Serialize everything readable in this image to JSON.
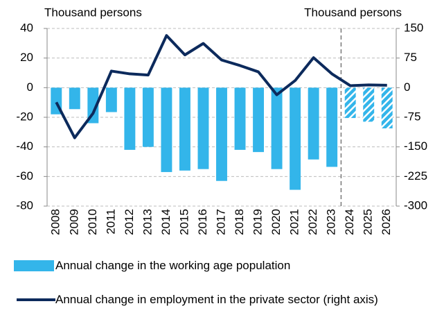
{
  "chart_data": {
    "type": "bar_line",
    "y_label": "Thousand persons",
    "y2_label": "Thousand persons",
    "categories": [
      "2008",
      "2009",
      "2010",
      "2011",
      "2012",
      "2013",
      "2014",
      "2015",
      "2016",
      "2017",
      "2018",
      "2019",
      "2020",
      "2021",
      "2022",
      "2023",
      "2024",
      "2025",
      "2026"
    ],
    "series": [
      {
        "name": "Annual change in the working age population",
        "type": "bar",
        "color": "#33b5ea",
        "values": [
          -18,
          -14.5,
          -24,
          -16.5,
          -42,
          -40,
          -57,
          -56,
          -55,
          -63,
          -42,
          -43.5,
          -55,
          -69,
          -48.5,
          -53.5,
          -20.5,
          -23,
          -27.5
        ],
        "hatched": [
          false,
          false,
          false,
          false,
          false,
          false,
          false,
          false,
          false,
          false,
          false,
          false,
          false,
          false,
          false,
          false,
          true,
          true,
          true
        ]
      },
      {
        "name": "Annual change in employment in the private sector (right axis)",
        "type": "line",
        "color": "#0c2a5c",
        "axis": "y2",
        "values": [
          -37,
          -127,
          -65,
          42,
          35,
          32,
          132,
          83,
          112,
          70,
          56,
          40,
          -18,
          18,
          76,
          35,
          5,
          7,
          6
        ]
      }
    ],
    "ylim": [
      -80,
      40
    ],
    "yticks": [
      -80,
      -60,
      -40,
      -20,
      0,
      20,
      40
    ],
    "y2lim": [
      -300,
      150
    ],
    "y2ticks": [
      -300,
      -225,
      -150,
      -75,
      0,
      75,
      150
    ],
    "grid": true,
    "legend": "bottom"
  }
}
